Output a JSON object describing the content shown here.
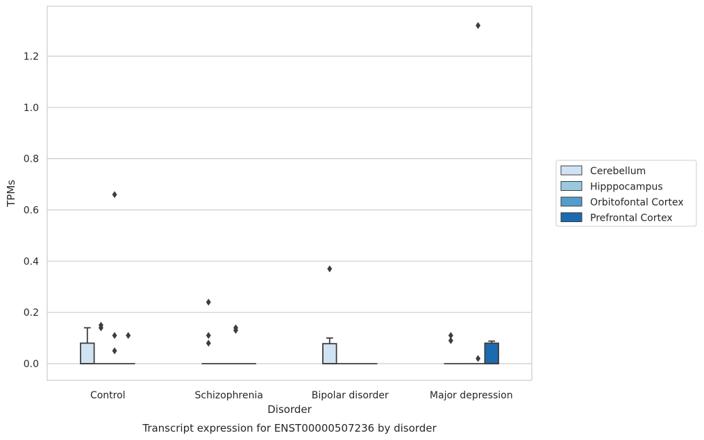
{
  "chart_data": {
    "type": "box",
    "title": "",
    "caption": "Transcript expression for ENST00000507236 by disorder",
    "xlabel": "Disorder",
    "ylabel": "TPMs",
    "ylim": [
      -0.065,
      1.395
    ],
    "yticks": [
      "0.0",
      "0.2",
      "0.4",
      "0.6",
      "0.8",
      "1.0",
      "1.2"
    ],
    "grid": "horizontal",
    "legend_position": "right",
    "categories": [
      "Control",
      "Schizophrenia",
      "Bipolar disorder",
      "Major depression"
    ],
    "series": [
      {
        "name": "Cerebellum",
        "color": "#d1e2f2",
        "boxes": [
          {
            "q1": 0.0,
            "median": 0.0,
            "q3": 0.08,
            "whisker_low": 0.0,
            "whisker_high": 0.14,
            "outliers": []
          },
          {
            "q1": 0.0,
            "median": 0.0,
            "q3": 0.0,
            "whisker_low": 0.0,
            "whisker_high": 0.0,
            "outliers": [
              0.24,
              0.11,
              0.08
            ]
          },
          {
            "q1": 0.0,
            "median": 0.0,
            "q3": 0.078,
            "whisker_low": 0.0,
            "whisker_high": 0.1,
            "outliers": [
              0.37
            ]
          },
          {
            "q1": 0.0,
            "median": 0.0,
            "q3": 0.0,
            "whisker_low": 0.0,
            "whisker_high": 0.0,
            "outliers": [
              0.11,
              0.09
            ]
          }
        ]
      },
      {
        "name": "Hipppocampus",
        "color": "#9ac8e0",
        "boxes": [
          {
            "q1": 0.0,
            "median": 0.0,
            "q3": 0.0,
            "whisker_low": 0.0,
            "whisker_high": 0.0,
            "outliers": [
              0.15,
              0.14
            ]
          },
          {
            "q1": 0.0,
            "median": 0.0,
            "q3": 0.0,
            "whisker_low": 0.0,
            "whisker_high": 0.0,
            "outliers": []
          },
          {
            "q1": 0.0,
            "median": 0.0,
            "q3": 0.0,
            "whisker_low": 0.0,
            "whisker_high": 0.0,
            "outliers": []
          },
          {
            "q1": 0.0,
            "median": 0.0,
            "q3": 0.0,
            "whisker_low": 0.0,
            "whisker_high": 0.0,
            "outliers": []
          }
        ]
      },
      {
        "name": "Orbitofontal Cortex",
        "color": "#529dcc",
        "boxes": [
          {
            "q1": 0.0,
            "median": 0.0,
            "q3": 0.0,
            "whisker_low": 0.0,
            "whisker_high": 0.0,
            "outliers": [
              0.66,
              0.11,
              0.05
            ]
          },
          {
            "q1": 0.0,
            "median": 0.0,
            "q3": 0.0,
            "whisker_low": 0.0,
            "whisker_high": 0.0,
            "outliers": [
              0.14,
              0.13
            ]
          },
          {
            "q1": 0.0,
            "median": 0.0,
            "q3": 0.0,
            "whisker_low": 0.0,
            "whisker_high": 0.0,
            "outliers": []
          },
          {
            "q1": 0.0,
            "median": 0.0,
            "q3": 0.0,
            "whisker_low": 0.0,
            "whisker_high": 0.0,
            "outliers": [
              1.32,
              0.02
            ]
          }
        ]
      },
      {
        "name": "Prefrontal Cortex",
        "color": "#1c6aaf",
        "boxes": [
          {
            "q1": 0.0,
            "median": 0.0,
            "q3": 0.0,
            "whisker_low": 0.0,
            "whisker_high": 0.0,
            "outliers": [
              0.11
            ]
          },
          {
            "q1": 0.0,
            "median": 0.0,
            "q3": 0.0,
            "whisker_low": 0.0,
            "whisker_high": 0.0,
            "outliers": []
          },
          {
            "q1": 0.0,
            "median": 0.0,
            "q3": 0.0,
            "whisker_low": 0.0,
            "whisker_high": 0.0,
            "outliers": []
          },
          {
            "q1": 0.0,
            "median": 0.0,
            "q3": 0.08,
            "whisker_low": 0.0,
            "whisker_high": 0.088,
            "outliers": []
          }
        ]
      }
    ]
  }
}
